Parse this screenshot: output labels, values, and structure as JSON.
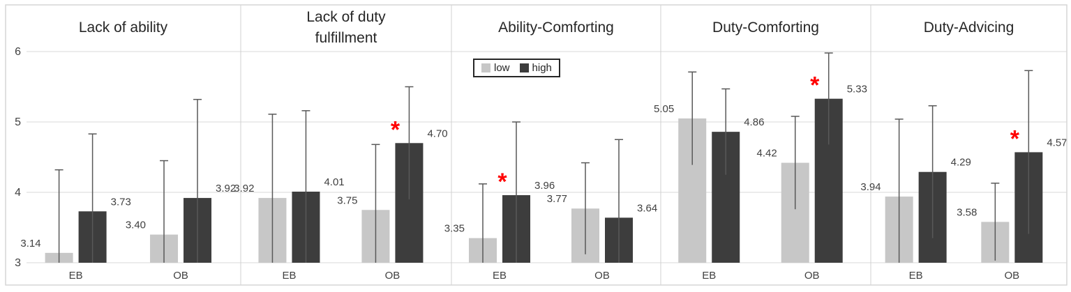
{
  "chart_data": {
    "type": "bar",
    "description": "Five-panel grouped bar chart with error bars comparing low vs high conditions for EB and OB groups",
    "ylim": [
      3,
      6
    ],
    "yticks": [
      3,
      4,
      5,
      6
    ],
    "groups": [
      "EB",
      "OB"
    ],
    "legend": {
      "low": "low",
      "high": "high",
      "position": "top of Ability-Comforting panel"
    },
    "colors": {
      "low": "#c7c7c7",
      "high": "#3d3d3d",
      "error_bar": "#595959",
      "grid": "#d9d9d9",
      "divider": "#d0d0d0",
      "border": "#d6d6d6",
      "asterisk": "#ff0000",
      "label_text": "#404040",
      "title_text": "#262626"
    },
    "panels": [
      {
        "title": "Lack of ability",
        "title_lines": [
          "Lack of ability"
        ],
        "series": [
          {
            "name": "low",
            "values": [
              3.14,
              3.4
            ],
            "error_upper": [
              4.32,
              4.45
            ]
          },
          {
            "name": "high",
            "values": [
              3.73,
              3.92
            ],
            "error_upper": [
              4.83,
              5.32
            ]
          }
        ],
        "asterisks": []
      },
      {
        "title": "Lack of duty fulfillment",
        "title_lines": [
          "Lack of duty",
          "fulfillment"
        ],
        "series": [
          {
            "name": "low",
            "values": [
              3.92,
              3.75
            ],
            "error_upper": [
              5.11,
              4.68
            ]
          },
          {
            "name": "high",
            "values": [
              4.01,
              4.7
            ],
            "error_upper": [
              5.16,
              5.5
            ]
          }
        ],
        "asterisks": [
          {
            "group": "OB",
            "series": "high"
          }
        ]
      },
      {
        "title": "Ability-Comforting",
        "title_lines": [
          "Ability-Comforting"
        ],
        "series": [
          {
            "name": "low",
            "values": [
              3.35,
              3.77
            ],
            "error_upper": [
              4.12,
              4.42
            ]
          },
          {
            "name": "high",
            "values": [
              3.96,
              3.64
            ],
            "error_upper": [
              5.0,
              4.75
            ]
          }
        ],
        "asterisks": [
          {
            "group": "EB",
            "series": "high"
          }
        ]
      },
      {
        "title": "Duty-Comforting",
        "title_lines": [
          "Duty-Comforting"
        ],
        "series": [
          {
            "name": "low",
            "values": [
              5.05,
              4.42
            ],
            "error_upper": [
              5.71,
              5.08
            ]
          },
          {
            "name": "high",
            "values": [
              4.86,
              5.33
            ],
            "error_upper": [
              5.47,
              5.98
            ]
          }
        ],
        "asterisks": [
          {
            "group": "OB",
            "series": "high"
          }
        ]
      },
      {
        "title": "Duty-Advicing",
        "title_lines": [
          "Duty-Advicing"
        ],
        "series": [
          {
            "name": "low",
            "values": [
              3.94,
              3.58
            ],
            "error_upper": [
              5.04,
              4.13
            ]
          },
          {
            "name": "high",
            "values": [
              4.29,
              4.57
            ],
            "error_upper": [
              5.23,
              5.73
            ]
          }
        ],
        "asterisks": [
          {
            "group": "OB",
            "series": "high"
          }
        ]
      }
    ]
  }
}
